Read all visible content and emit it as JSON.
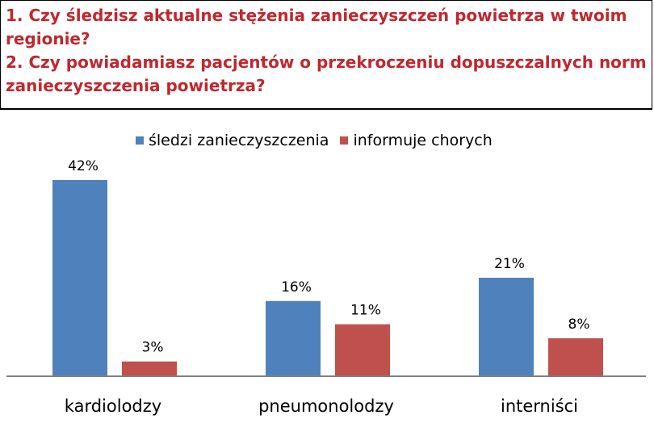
{
  "header": {
    "question_1": "1. Czy śledzisz aktualne stężenia zanieczyszczeń  powietrza w twoim regionie?",
    "question_2": "2. Czy powiadamiasz pacjentów o przekroczeniu dopuszczalnych norm zanieczyszczenia powietrza?"
  },
  "chart_data": {
    "type": "bar",
    "categories": [
      "kardiolodzy",
      "pneumonolodzy",
      "interniści"
    ],
    "series": [
      {
        "name": "śledzi zanieczyszczenia",
        "values": [
          42,
          16,
          21
        ],
        "labels": [
          "42%",
          "16%",
          "21%"
        ],
        "color": "#4f81bd"
      },
      {
        "name": "informuje chorych",
        "values": [
          3,
          11,
          8
        ],
        "labels": [
          "3%",
          "11%",
          "8%"
        ],
        "color": "#c0504d"
      }
    ],
    "ylim": [
      0,
      42
    ],
    "legend": "top",
    "grid": false
  }
}
